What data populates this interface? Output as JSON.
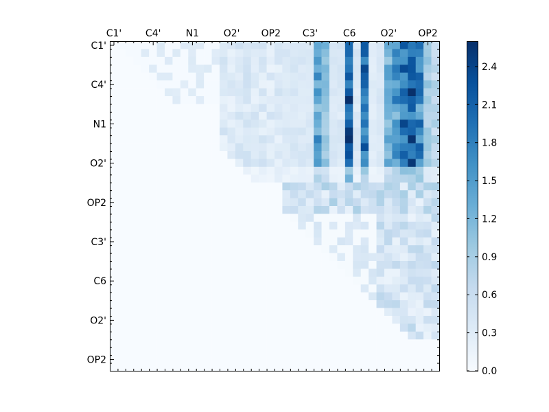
{
  "chart_data": {
    "type": "heatmap",
    "title": "",
    "xlabel": "",
    "ylabel": "",
    "rows": 42,
    "cols": 42,
    "x_tick_labels": [
      "C1'",
      "C4'",
      "N1",
      "O2'",
      "OP2",
      "C3'",
      "C6",
      "O2'",
      "OP2"
    ],
    "y_tick_labels": [
      "C1'",
      "C4'",
      "N1",
      "O2'",
      "OP2",
      "C3'",
      "C6",
      "O2'",
      "OP2"
    ],
    "x_ticks_position": "top",
    "colorbar": {
      "min": 0.0,
      "max": 2.6,
      "tick_labels": [
        "0.0",
        "0.3",
        "0.6",
        "0.9",
        "1.2",
        "1.5",
        "1.8",
        "2.1",
        "2.4"
      ],
      "colormap": "Blues",
      "position": "right"
    },
    "grid": false,
    "note_on_values": "Upper-triangular matrix; strongest values (up to ~2.6) appear in columns around C3'–O2' for rows C1'–O2'.",
    "colors": {
      "low": "#f7fbff",
      "high": "#08306b"
    }
  }
}
